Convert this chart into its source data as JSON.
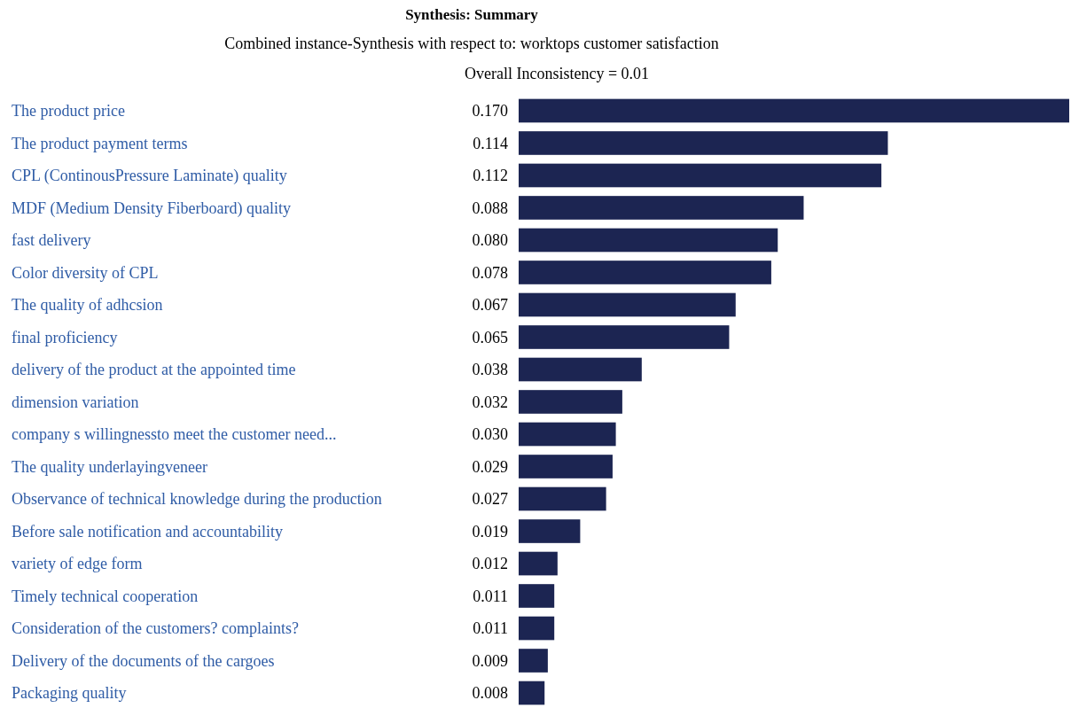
{
  "chart_data": {
    "type": "bar",
    "orientation": "horizontal",
    "title": "Synthesis: Summary",
    "subtitle": "Combined instance-Synthesis with respect to: worktops customer satisfaction",
    "annotations": [
      "Overall Inconsistency = 0.01"
    ],
    "categories": [
      "The product price",
      "The product payment terms",
      "CPL (ContinousPressure Laminate) quality",
      "MDF (Medium Density Fiberboard) quality",
      "fast delivery",
      "Color diversity of CPL",
      "The quality of adhcsion",
      "final proficiency",
      "delivery of the product at the appointed time",
      "dimension variation",
      "company s willingnessto meet the customer need...",
      "The quality underlayingveneer",
      "Observance of technical knowledge during the production",
      "Before sale notification and accountability",
      "variety of edge form",
      "Timely technical cooperation",
      "Consideration of the customers? complaints?",
      "Delivery of the documents of the cargoes",
      "Packaging quality"
    ],
    "values": [
      0.17,
      0.114,
      0.112,
      0.088,
      0.08,
      0.078,
      0.067,
      0.065,
      0.038,
      0.032,
      0.03,
      0.029,
      0.027,
      0.019,
      0.012,
      0.011,
      0.011,
      0.009,
      0.008
    ],
    "value_labels": [
      "0.170",
      "0.114",
      "0.112",
      "0.088",
      "0.080",
      "0.078",
      "0.067",
      "0.065",
      "0.038",
      "0.032",
      "0.030",
      "0.029",
      "0.027",
      "0.019",
      "0.012",
      "0.011",
      "0.011",
      "0.009",
      "0.008"
    ],
    "color": "#1c2552"
  }
}
